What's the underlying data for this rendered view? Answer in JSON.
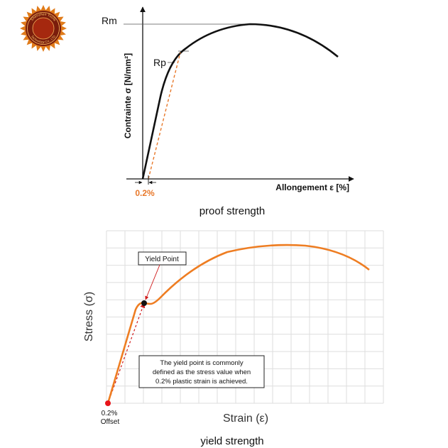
{
  "logo": {
    "text_top": "Shenzhen Tuofa",
    "text_bottom": "Technology Co., LTD",
    "colors": {
      "outer": "#e07b1a",
      "ring": "#7a1d0c",
      "inner": "#a5280f"
    }
  },
  "proof_diagram": {
    "label_rm": "Rm",
    "label_rp": "Rp",
    "y_axis_label": "Contrainte σ [N/mm²]",
    "x_axis_label": "Allongement ε [%]",
    "offset_label": "0.2%",
    "caption": "proof strength",
    "colors": {
      "curve": "#111111",
      "offset_line": "#e8782a",
      "offset_label": "#e8782a",
      "guide": "#555555"
    }
  },
  "yield_diagram": {
    "callout_label": "Yield Point",
    "y_axis_label": "Stress (σ)",
    "x_axis_label": "Strain (ε)",
    "offset_label_line1": "0.2%",
    "offset_label_line2": "Offset",
    "note_line1": "The yield point is commonly",
    "note_line2": "defined as the stress value when",
    "note_line3": "0.2% plastic strain is achieved.",
    "caption": "yield strength",
    "colors": {
      "curve": "#ee7d22",
      "offset_line": "#d01a1a",
      "grid": "#dedede",
      "origin_dot": "#e8141a",
      "yield_dot": "#111111"
    }
  }
}
